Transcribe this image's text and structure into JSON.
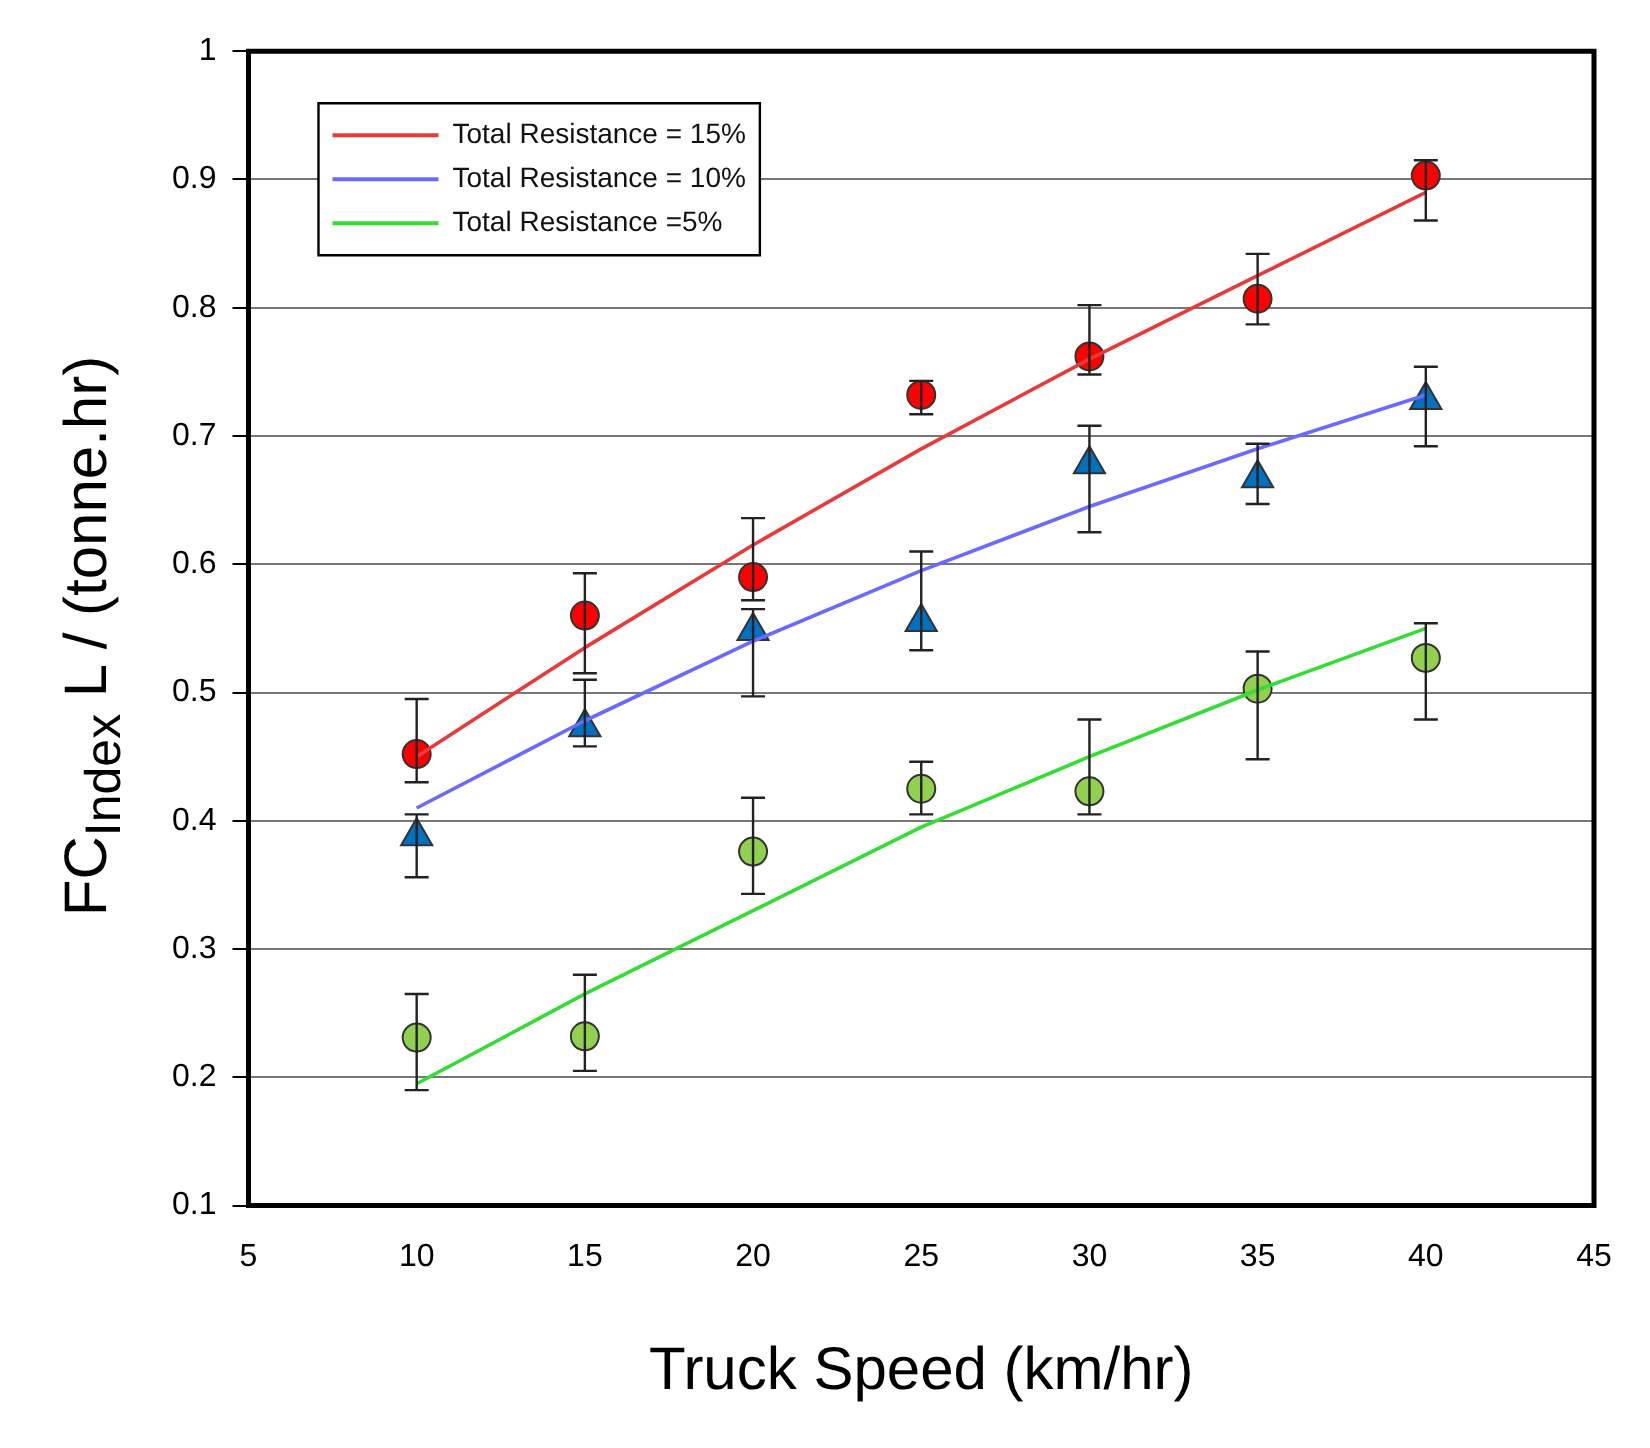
{
  "chart_data": {
    "type": "scatter",
    "xlabel": "Truck Speed (km/hr)",
    "ylabel": "FC$_{Index}$   L / (tonne.hr)",
    "x": [
      10,
      15,
      20,
      25,
      30,
      35,
      40
    ],
    "xlim": [
      5,
      45
    ],
    "xticks": [
      5,
      10,
      15,
      20,
      25,
      30,
      35,
      40,
      45
    ],
    "ylim": [
      0.1,
      1
    ],
    "yticks": [
      0.1,
      0.2,
      0.3,
      0.4,
      0.5,
      0.6,
      0.7,
      0.8,
      0.9,
      1
    ],
    "grid": "y",
    "legend": "top left",
    "line_style": "solid",
    "series": [
      {
        "type": "scatter",
        "marker": "circle",
        "color": "#ff0000",
        "values": [
          0.452,
          0.56,
          0.59,
          0.732,
          0.762,
          0.807,
          0.903
        ],
        "errors": [
          [
            0.43,
            0.495
          ],
          [
            0.515,
            0.593
          ],
          [
            0.572,
            0.636
          ],
          [
            0.717,
            0.743
          ],
          [
            0.748,
            0.802
          ],
          [
            0.787,
            0.842
          ],
          [
            0.868,
            0.915
          ]
        ]
      },
      {
        "type": "scatter",
        "marker": "triangle",
        "color": "#0070c0",
        "values": [
          0.388,
          0.473,
          0.548,
          0.555,
          0.678,
          0.667,
          0.728
        ],
        "errors": [
          [
            0.356,
            0.405
          ],
          [
            0.458,
            0.51
          ],
          [
            0.497,
            0.565
          ],
          [
            0.533,
            0.61
          ],
          [
            0.625,
            0.708
          ],
          [
            0.647,
            0.694
          ],
          [
            0.692,
            0.754
          ]
        ]
      },
      {
        "type": "scatter",
        "marker": "circle",
        "color": "#92d050",
        "values": [
          0.231,
          0.232,
          0.376,
          0.425,
          0.423,
          0.503,
          0.527
        ],
        "errors": [
          [
            0.19,
            0.265
          ],
          [
            0.205,
            0.28
          ],
          [
            0.343,
            0.418
          ],
          [
            0.405,
            0.446
          ],
          [
            0.405,
            0.479
          ],
          [
            0.448,
            0.532
          ],
          [
            0.479,
            0.554
          ]
        ]
      },
      {
        "type": "line",
        "name": "Total Resistance = 15%",
        "color": "#e83a3a",
        "x": [
          10,
          15,
          20,
          25,
          30,
          35,
          40
        ],
        "values": [
          0.45,
          0.535,
          0.615,
          0.69,
          0.76,
          0.825,
          0.89
        ]
      },
      {
        "type": "line",
        "name": "Total Resistance = 10%",
        "color": "#6a6aff",
        "x": [
          10,
          15,
          20,
          25,
          30,
          35,
          40
        ],
        "values": [
          0.41,
          0.478,
          0.54,
          0.595,
          0.645,
          0.69,
          0.732
        ]
      },
      {
        "type": "line",
        "name": "Total Resistance =5%",
        "color": "#33dd33",
        "x": [
          10,
          15,
          20,
          25,
          30,
          35,
          40
        ],
        "values": [
          0.195,
          0.265,
          0.33,
          0.395,
          0.45,
          0.502,
          0.55
        ]
      }
    ]
  }
}
